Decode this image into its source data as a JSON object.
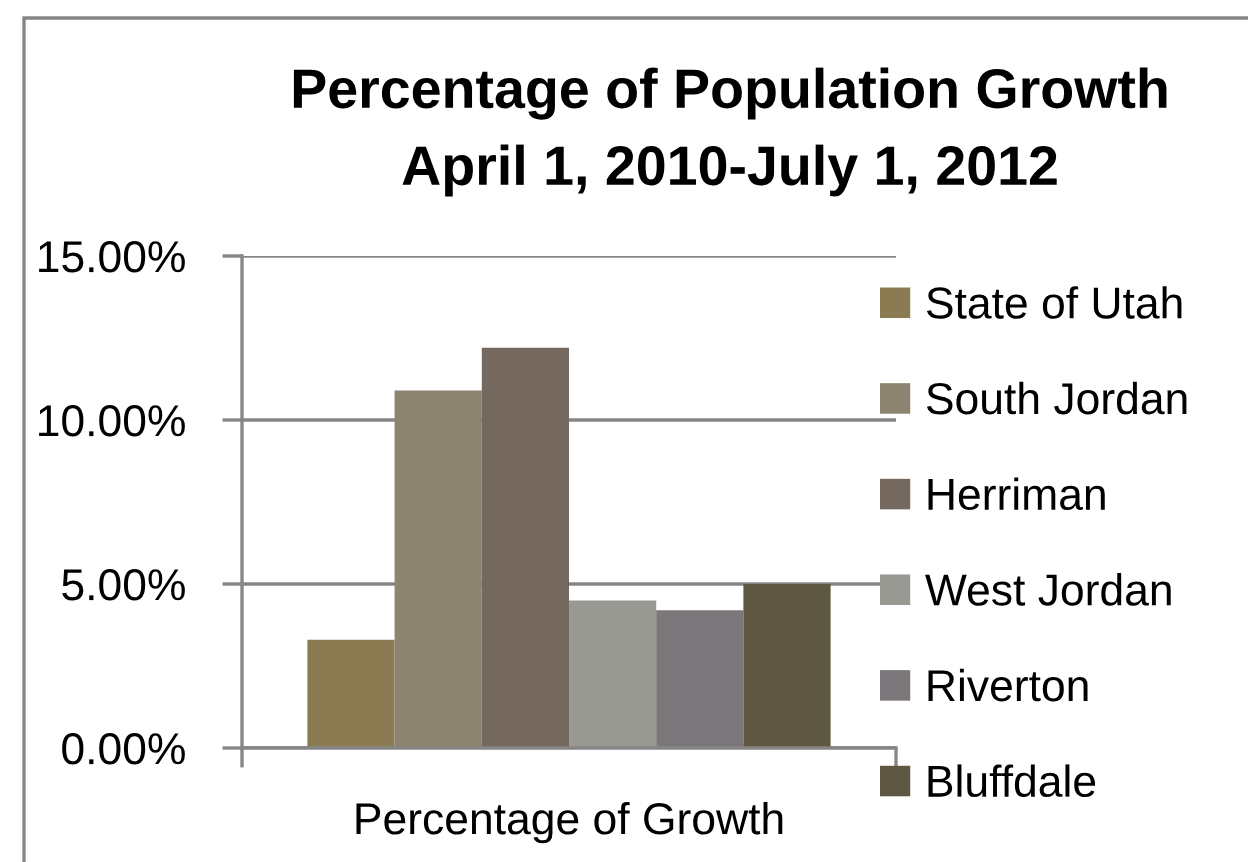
{
  "chart_data": {
    "type": "bar",
    "title": "Percentage of Population Growth\nApril 1, 2010-July 1, 2012",
    "xlabel": "Percentage of Growth",
    "categories": [
      null,
      null,
      null,
      null,
      null,
      null
    ],
    "stacked": true,
    "series": [
      {
        "name": "State of Utah",
        "color": "#8b7b53",
        "values": [
          3.3,
          null,
          null,
          null,
          null,
          null
        ]
      },
      {
        "name": "South Jordan",
        "color": "#8c8370",
        "values": [
          null,
          10.9,
          null,
          null,
          null,
          null
        ]
      },
      {
        "name": "Herriman",
        "color": "#75685e",
        "values": [
          null,
          null,
          12.2,
          null,
          null,
          null
        ]
      },
      {
        "name": "West Jordan",
        "color": "#989993",
        "values": [
          null,
          null,
          null,
          4.5,
          null,
          null
        ]
      },
      {
        "name": "Riverton",
        "color": "#7b7679",
        "values": [
          null,
          null,
          null,
          null,
          4.2,
          null
        ]
      },
      {
        "name": "Bluffdale",
        "color": "#5e5742",
        "values": [
          null,
          null,
          null,
          null,
          null,
          5.0
        ]
      }
    ],
    "ylim": [
      0,
      15
    ],
    "yticks": [
      {
        "value": 0,
        "label": "0.00%"
      },
      {
        "value": 5,
        "label": "5.00%"
      },
      {
        "value": 10,
        "label": "10.00%"
      },
      {
        "value": 15,
        "label": "15.00%"
      }
    ],
    "grid": "y",
    "legend": "right"
  }
}
